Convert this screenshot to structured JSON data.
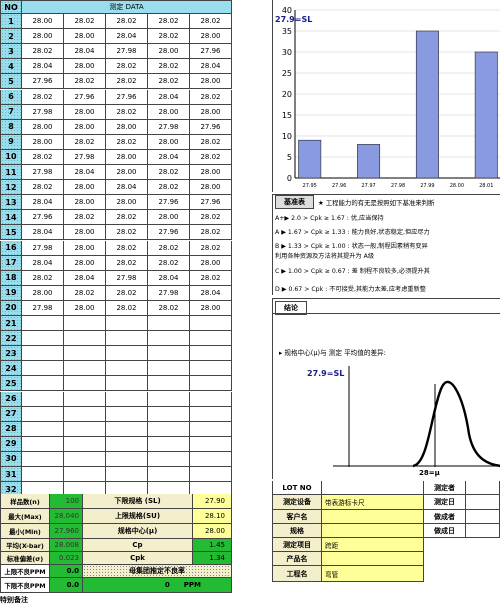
{
  "table": {
    "no_header": "NO",
    "data_header": "测定 DATA",
    "row_numbers": [
      "1",
      "2",
      "3",
      "4",
      "5",
      "6",
      "7",
      "8",
      "9",
      "10",
      "11",
      "12",
      "13",
      "14",
      "15",
      "16",
      "17",
      "18",
      "19",
      "20",
      "21",
      "22",
      "23",
      "24",
      "25",
      "26",
      "27",
      "28",
      "29",
      "30",
      "31",
      "32",
      "33"
    ],
    "rows": [
      [
        "28.00",
        "28.02",
        "28.02",
        "28.02",
        "28.02"
      ],
      [
        "28.00",
        "28.00",
        "28.04",
        "28.02",
        "28.00"
      ],
      [
        "28.02",
        "28.04",
        "27.98",
        "28.00",
        "27.96"
      ],
      [
        "28.04",
        "28.00",
        "28.02",
        "28.02",
        "28.04"
      ],
      [
        "27.96",
        "28.02",
        "28.02",
        "28.02",
        "28.00"
      ],
      [
        "28.02",
        "27.96",
        "27.96",
        "28.04",
        "28.02"
      ],
      [
        "27.98",
        "28.00",
        "28.02",
        "28.00",
        "28.00"
      ],
      [
        "28.00",
        "28.00",
        "28.00",
        "27.98",
        "27.96"
      ],
      [
        "28.00",
        "28.02",
        "28.02",
        "28.00",
        "28.02"
      ],
      [
        "28.02",
        "27.98",
        "28.00",
        "28.04",
        "28.02"
      ],
      [
        "27.98",
        "28.04",
        "28.00",
        "28.02",
        "28.00"
      ],
      [
        "28.02",
        "28.00",
        "28.04",
        "28.02",
        "28.00"
      ],
      [
        "28.04",
        "28.00",
        "28.00",
        "27.96",
        "27.96"
      ],
      [
        "27.96",
        "28.02",
        "28.02",
        "28.00",
        "28.02"
      ],
      [
        "28.04",
        "28.00",
        "28.02",
        "27.96",
        "28.02"
      ],
      [
        "27.98",
        "28.00",
        "28.02",
        "28.02",
        "28.02"
      ],
      [
        "28.04",
        "28.00",
        "28.02",
        "28.02",
        "28.00"
      ],
      [
        "28.02",
        "28.04",
        "27.98",
        "28.04",
        "28.02"
      ],
      [
        "28.00",
        "28.02",
        "28.02",
        "27.98",
        "28.04"
      ],
      [
        "27.98",
        "28.00",
        "28.02",
        "28.02",
        "28.00"
      ]
    ]
  },
  "stats": {
    "labels": [
      "样品数(n)",
      "最大(Max)",
      "最小(Min)",
      "平均(X-bar)",
      "标准偏差(σ)",
      "上限不良PPM",
      "下限不良PPM"
    ],
    "values": [
      "100",
      "28.040",
      "27.960",
      "28.008",
      "0.023",
      "0.0",
      "0.0"
    ]
  },
  "spec": {
    "sl_label": "下限规格 (SL)",
    "sl_value": "27.90",
    "su_label": "上限规格(SU)",
    "su_value": "28.10",
    "mu_label": "规格中心(μ)",
    "mu_value": "28.00",
    "cp_label": "Cp",
    "cp_value": "1.45",
    "cpk_label": "Cpk",
    "cpk_value": "1.34",
    "collective_label": "母集团推定不良率",
    "ppm_value": "0",
    "ppm_unit": "PPM"
  },
  "histogram": {
    "sl_label": "27.9=SL",
    "chart_data": {
      "type": "bar",
      "categories": [
        "27.95",
        "27.96",
        "27.97",
        "27.98",
        "27.99",
        "28.00",
        "28.01"
      ],
      "values": [
        9,
        0,
        8,
        0,
        35,
        0,
        30
      ],
      "ylim": [
        0,
        40
      ],
      "yticks": [
        "0",
        "5",
        "10",
        "15",
        "20",
        "25",
        "30",
        "35",
        "40"
      ]
    }
  },
  "criteria": {
    "title": "基准表",
    "note": "★ 工程能力的有无是按照如下基准来判断",
    "lines": [
      "A+▶ 2.0 > Cpk ≥ 1.67 : 优,应当保持",
      "A ▶ 1.67 > Cpk ≥ 1.33 : 能力良好,状态稳定,但应尽力",
      "B ▶ 1.33 > Cpk ≥ 1.00 : 状态一般,制程因素稍有变异",
      "利用各种资源及方法将其提升为 A级",
      "C ▶ 1.00 > Cpk ≥ 0.67 : 差 制程不良较多,必须提升其",
      "D ▶ 0.67 > Cpk : 不可接受,其能力太差,应考虑重新整"
    ]
  },
  "conclusion": {
    "title": "结论",
    "text": "▸ 规格中心(μ)与 测定 平均值的差异:"
  },
  "curve": {
    "sl_label": "27.9=SL",
    "mu_label": "28=μ"
  },
  "info": {
    "left_labels": [
      "LOT NO",
      "测定设备",
      "客户名",
      "规格",
      "测定项目",
      "产品名",
      "工程名"
    ],
    "left_values": [
      "",
      "带表游标卡尺",
      "",
      "",
      "跨距",
      "",
      "弯管"
    ],
    "right_labels": [
      "测定者",
      "测定日",
      "做成者",
      "做成日"
    ]
  },
  "footer": "特别备注"
}
